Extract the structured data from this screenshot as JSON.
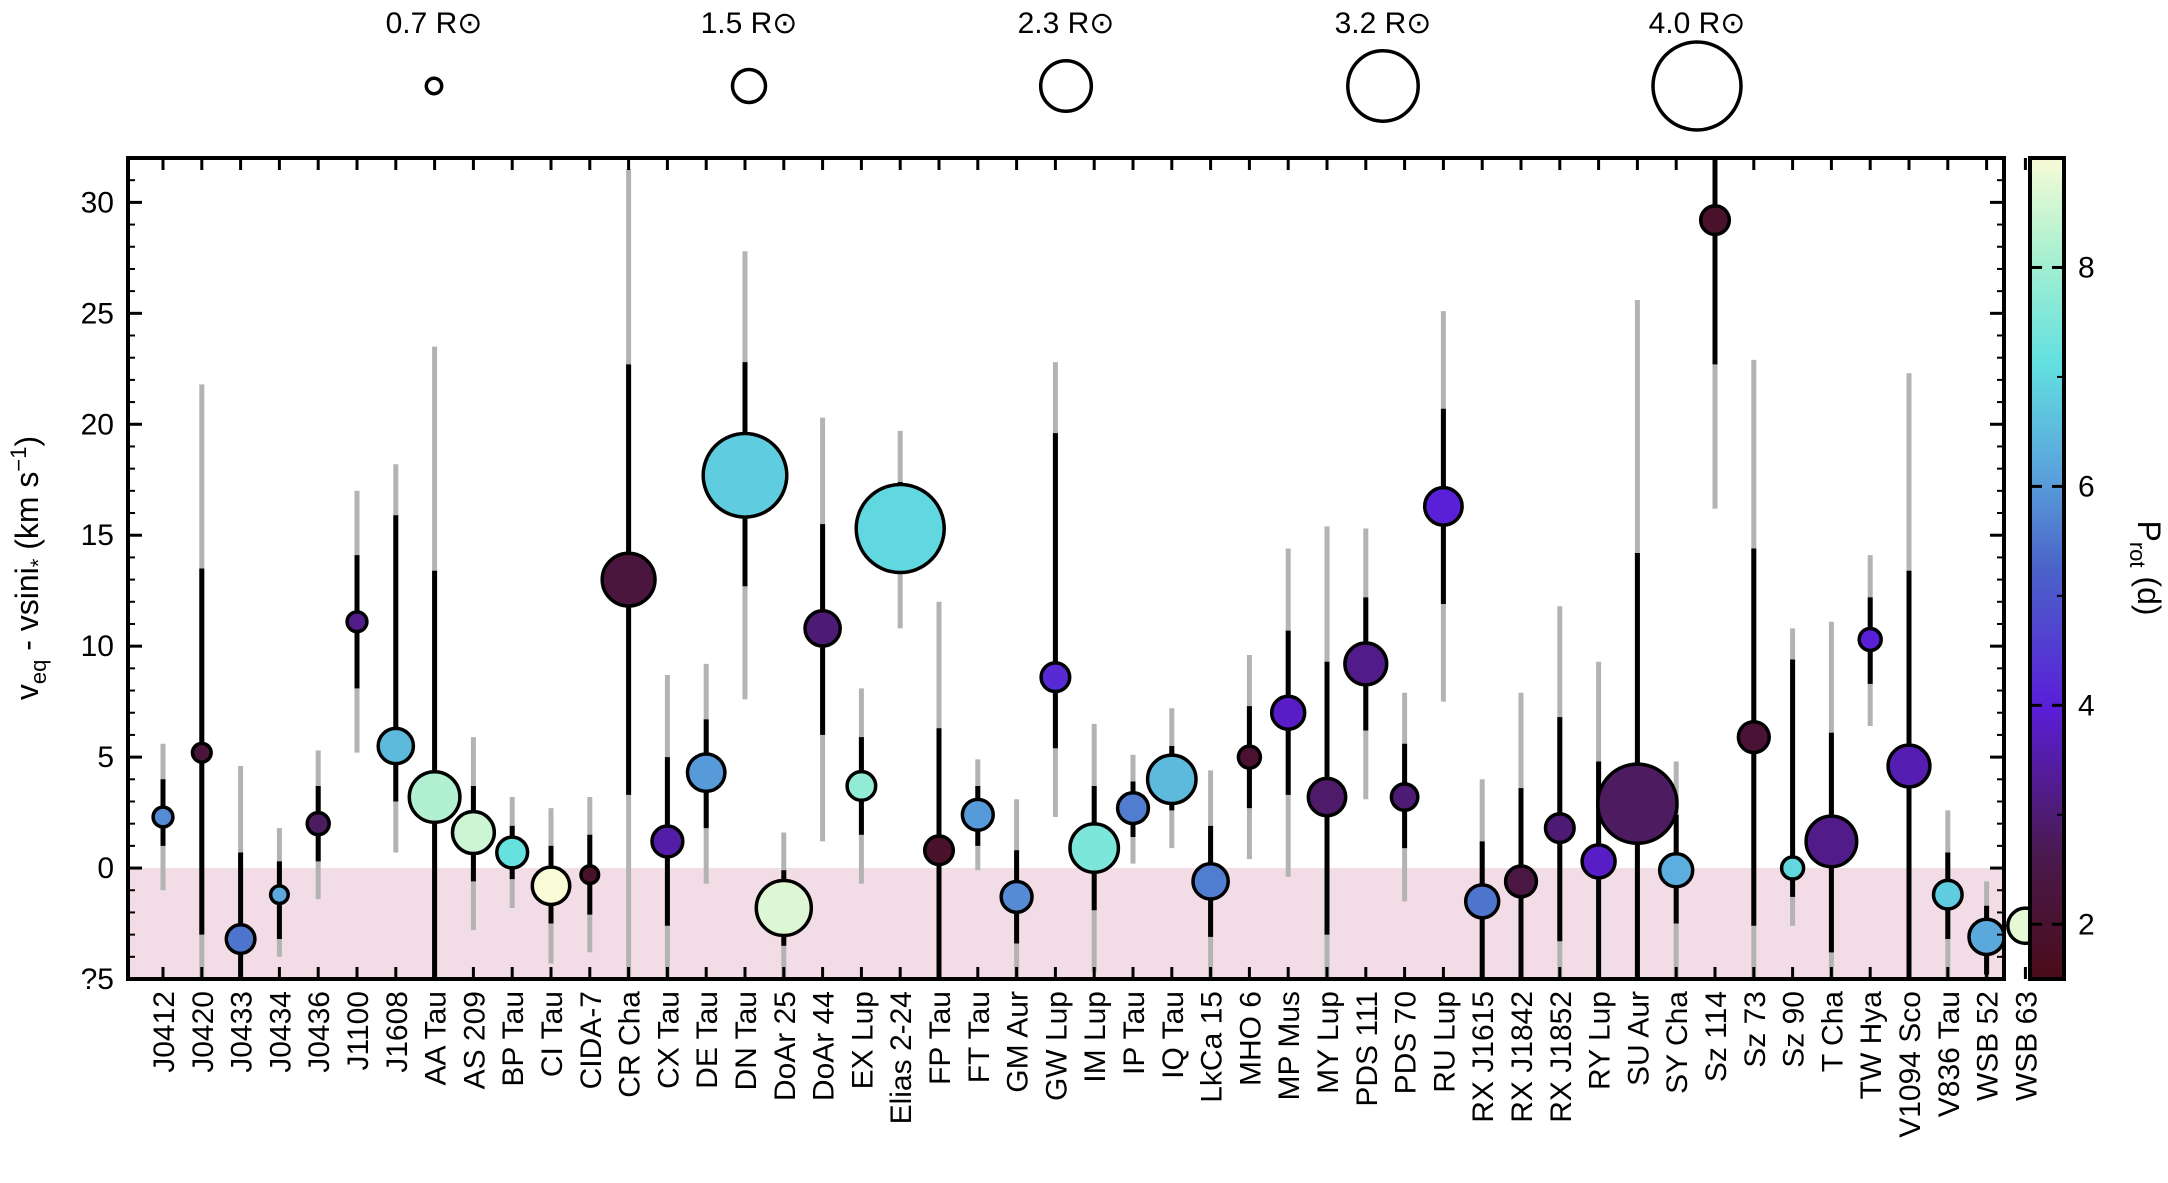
{
  "chart_data": {
    "type": "scatter",
    "ylabel": "v_eq - vsini_* (km s^-1)",
    "ylim": [
      -5,
      32
    ],
    "yticks": [
      -5,
      0,
      5,
      10,
      15,
      20,
      25,
      30
    ],
    "ytick_labels": [
      "?5",
      "0",
      "5",
      "10",
      "15",
      "20",
      "25",
      "30"
    ],
    "shaded_region": {
      "y_from": -5,
      "y_to": 0,
      "color": "#f2dde6"
    },
    "size_legend": [
      {
        "label": "0.7 R⊙",
        "radius_rsun": 0.7
      },
      {
        "label": "1.5 R⊙",
        "radius_rsun": 1.5
      },
      {
        "label": "2.3 R⊙",
        "radius_rsun": 2.3
      },
      {
        "label": "3.2 R⊙",
        "radius_rsun": 3.2
      },
      {
        "label": "4.0 R⊙",
        "radius_rsun": 4.0
      }
    ],
    "colorbar": {
      "label": "P_rot (d)",
      "range": [
        1.5,
        9.0
      ],
      "ticks": [
        2,
        4,
        6,
        8
      ],
      "tick_labels": [
        "2",
        "4",
        "6",
        "8"
      ],
      "colormap": "mako_r-like (dark red → purple → blue → cyan → pale yellow)"
    },
    "stars": [
      {
        "name": "J0412",
        "y": 2.3,
        "e1": [
          1.0,
          4.0
        ],
        "e2": [
          -1.0,
          5.6
        ],
        "r": 0.9,
        "prot": 5.8
      },
      {
        "name": "J0420",
        "y": 5.2,
        "e1": [
          -3.0,
          13.5
        ],
        "e2": [
          -5.0,
          21.8
        ],
        "r": 0.85,
        "prot": 2.2
      },
      {
        "name": "J0433",
        "y": -3.2,
        "e1": [
          -5.0,
          0.7
        ],
        "e2": [
          -5.0,
          4.6
        ],
        "r": 1.3,
        "prot": 5.5
      },
      {
        "name": "J0434",
        "y": -1.2,
        "e1": [
          -3.2,
          0.3
        ],
        "e2": [
          -4.0,
          1.8
        ],
        "r": 0.8,
        "prot": 6.2
      },
      {
        "name": "J0436",
        "y": 2.0,
        "e1": [
          0.3,
          3.7
        ],
        "e2": [
          -1.4,
          5.3
        ],
        "r": 1.0,
        "prot": 2.8
      },
      {
        "name": "J1100",
        "y": 11.1,
        "e1": [
          8.1,
          14.1
        ],
        "e2": [
          5.2,
          17.0
        ],
        "r": 0.9,
        "prot": 3.2
      },
      {
        "name": "J1608",
        "y": 5.5,
        "e1": [
          3.0,
          15.9
        ],
        "e2": [
          0.7,
          18.2
        ],
        "r": 1.6,
        "prot": 6.5
      },
      {
        "name": "AA Tau",
        "y": 3.2,
        "e1": [
          -5.0,
          13.4
        ],
        "e2": [
          -5.0,
          23.5
        ],
        "r": 2.3,
        "prot": 8.2
      },
      {
        "name": "AS 209",
        "y": 1.6,
        "e1": [
          -0.6,
          3.7
        ],
        "e2": [
          -2.8,
          5.9
        ],
        "r": 1.9,
        "prot": 8.5
      },
      {
        "name": "BP Tau",
        "y": 0.7,
        "e1": [
          -0.5,
          1.9
        ],
        "e2": [
          -1.8,
          3.2
        ],
        "r": 1.4,
        "prot": 7.2
      },
      {
        "name": "CI Tau",
        "y": -0.8,
        "e1": [
          -2.5,
          1.0
        ],
        "e2": [
          -4.3,
          2.7
        ],
        "r": 1.7,
        "prot": 9.0
      },
      {
        "name": "CIDA-7",
        "y": -0.3,
        "e1": [
          -2.1,
          1.5
        ],
        "e2": [
          -3.8,
          3.2
        ],
        "r": 0.8,
        "prot": 1.9
      },
      {
        "name": "CR Cha",
        "y": 13.0,
        "e1": [
          3.3,
          22.7
        ],
        "e2": [
          -5.0,
          31.5
        ],
        "r": 2.4,
        "prot": 2.3
      },
      {
        "name": "CX Tau",
        "y": 1.2,
        "e1": [
          -2.6,
          5.0
        ],
        "e2": [
          -5.0,
          8.7
        ],
        "r": 1.4,
        "prot": 3.5
      },
      {
        "name": "DE Tau",
        "y": 4.3,
        "e1": [
          1.8,
          6.7
        ],
        "e2": [
          -0.7,
          9.2
        ],
        "r": 1.7,
        "prot": 6.0
      },
      {
        "name": "DN Tau",
        "y": 17.7,
        "e1": [
          12.7,
          22.8
        ],
        "e2": [
          7.6,
          27.8
        ],
        "r": 3.8,
        "prot": 6.8
      },
      {
        "name": "DoAr 25",
        "y": -1.8,
        "e1": [
          -3.5,
          -0.1
        ],
        "e2": [
          -5.0,
          1.6
        ],
        "r": 2.5,
        "prot": 8.7
      },
      {
        "name": "DoAr 44",
        "y": 10.8,
        "e1": [
          6.0,
          15.5
        ],
        "e2": [
          1.2,
          20.3
        ],
        "r": 1.6,
        "prot": 3.0
      },
      {
        "name": "EX Lup",
        "y": 3.7,
        "e1": [
          1.5,
          5.9
        ],
        "e2": [
          -0.7,
          8.1
        ],
        "r": 1.3,
        "prot": 7.8
      },
      {
        "name": "Elias 2-24",
        "y": 15.3,
        "e1": [
          13.3,
          17.4
        ],
        "e2": [
          10.8,
          19.7
        ],
        "r": 4.0,
        "prot": 7.0
      },
      {
        "name": "FP Tau",
        "y": 0.8,
        "e1": [
          -5.0,
          6.3
        ],
        "e2": [
          -5.0,
          12.0
        ],
        "r": 1.3,
        "prot": 1.9
      },
      {
        "name": "FT Tau",
        "y": 2.4,
        "e1": [
          1.0,
          3.7
        ],
        "e2": [
          -0.1,
          4.9
        ],
        "r": 1.4,
        "prot": 6.0
      },
      {
        "name": "GM Aur",
        "y": -1.3,
        "e1": [
          -3.4,
          0.8
        ],
        "e2": [
          -5.0,
          3.1
        ],
        "r": 1.4,
        "prot": 5.8
      },
      {
        "name": "GW Lup",
        "y": 8.6,
        "e1": [
          5.4,
          19.6
        ],
        "e2": [
          2.3,
          22.8
        ],
        "r": 1.3,
        "prot": 4.2
      },
      {
        "name": "IM Lup",
        "y": 0.9,
        "e1": [
          -1.9,
          3.7
        ],
        "e2": [
          -4.7,
          6.5
        ],
        "r": 2.2,
        "prot": 7.5
      },
      {
        "name": "IP Tau",
        "y": 2.7,
        "e1": [
          1.4,
          3.9
        ],
        "e2": [
          0.2,
          5.1
        ],
        "r": 1.4,
        "prot": 5.6
      },
      {
        "name": "IQ Tau",
        "y": 4.0,
        "e1": [
          2.6,
          5.5
        ],
        "e2": [
          0.9,
          7.2
        ],
        "r": 2.2,
        "prot": 6.5
      },
      {
        "name": "LkCa 15",
        "y": -0.6,
        "e1": [
          -3.1,
          1.9
        ],
        "e2": [
          -5.0,
          4.4
        ],
        "r": 1.6,
        "prot": 5.6
      },
      {
        "name": "MHO 6",
        "y": 5.0,
        "e1": [
          2.7,
          7.3
        ],
        "e2": [
          0.4,
          9.6
        ],
        "r": 1.0,
        "prot": 2.0
      },
      {
        "name": "MP Mus",
        "y": 7.0,
        "e1": [
          3.3,
          10.7
        ],
        "e2": [
          -0.4,
          14.4
        ],
        "r": 1.5,
        "prot": 3.8
      },
      {
        "name": "MY Lup",
        "y": 3.2,
        "e1": [
          -3.0,
          9.3
        ],
        "e2": [
          -5.0,
          15.4
        ],
        "r": 1.7,
        "prot": 2.9
      },
      {
        "name": "PDS 111",
        "y": 9.2,
        "e1": [
          6.2,
          12.2
        ],
        "e2": [
          3.1,
          15.3
        ],
        "r": 1.9,
        "prot": 3.2
      },
      {
        "name": "PDS 70",
        "y": 3.2,
        "e1": [
          0.9,
          5.6
        ],
        "e2": [
          -1.5,
          7.9
        ],
        "r": 1.2,
        "prot": 3.0
      },
      {
        "name": "RU Lup",
        "y": 16.3,
        "e1": [
          11.9,
          20.7
        ],
        "e2": [
          7.5,
          25.1
        ],
        "r": 1.7,
        "prot": 4.0
      },
      {
        "name": "RX J1615",
        "y": -1.5,
        "e1": [
          -5.0,
          1.2
        ],
        "e2": [
          -5.0,
          4.0
        ],
        "r": 1.5,
        "prot": 5.5
      },
      {
        "name": "RX J1842",
        "y": -0.6,
        "e1": [
          -5.0,
          3.6
        ],
        "e2": [
          -5.0,
          7.9
        ],
        "r": 1.4,
        "prot": 2.4
      },
      {
        "name": "RX J1852",
        "y": 1.8,
        "e1": [
          -3.3,
          6.8
        ],
        "e2": [
          -5.0,
          11.8
        ],
        "r": 1.3,
        "prot": 3.0
      },
      {
        "name": "RY Lup",
        "y": 0.3,
        "e1": [
          -5.0,
          4.8
        ],
        "e2": [
          -5.0,
          9.3
        ],
        "r": 1.5,
        "prot": 3.8
      },
      {
        "name": "SU Aur",
        "y": 2.9,
        "e1": [
          -5.0,
          14.2
        ],
        "e2": [
          -5.0,
          25.6
        ],
        "r": 3.6,
        "prot": 2.8
      },
      {
        "name": "SY Cha",
        "y": -0.1,
        "e1": [
          -2.5,
          2.4
        ],
        "e2": [
          -4.9,
          4.8
        ],
        "r": 1.5,
        "prot": 6.3
      },
      {
        "name": "Sz 114",
        "y": 29.2,
        "e1": [
          22.7,
          32.0
        ],
        "e2": [
          16.2,
          32.0
        ],
        "r": 1.3,
        "prot": 1.9
      },
      {
        "name": "Sz 73",
        "y": 5.9,
        "e1": [
          -2.6,
          14.4
        ],
        "e2": [
          -5.0,
          22.9
        ],
        "r": 1.4,
        "prot": 2.1
      },
      {
        "name": "Sz 90",
        "y": 0.0,
        "e1": [
          -1.3,
          9.4
        ],
        "e2": [
          -2.6,
          10.8
        ],
        "r": 1.0,
        "prot": 7.0
      },
      {
        "name": "T Cha",
        "y": 1.2,
        "e1": [
          -3.8,
          6.1
        ],
        "e2": [
          -5.0,
          11.1
        ],
        "r": 2.3,
        "prot": 3.2
      },
      {
        "name": "TW Hya",
        "y": 10.3,
        "e1": [
          8.3,
          12.2
        ],
        "e2": [
          6.4,
          14.1
        ],
        "r": 1.0,
        "prot": 4.0
      },
      {
        "name": "V1094 Sco",
        "y": 4.6,
        "e1": [
          -5.0,
          13.4
        ],
        "e2": [
          -5.0,
          22.3
        ],
        "r": 1.9,
        "prot": 3.6
      },
      {
        "name": "V836 Tau",
        "y": -1.2,
        "e1": [
          -3.2,
          0.7
        ],
        "e2": [
          -5.0,
          2.6
        ],
        "r": 1.3,
        "prot": 6.8
      },
      {
        "name": "WSB 52",
        "y": -3.1,
        "e1": [
          -4.8,
          -1.7
        ],
        "e2": [
          -5.0,
          -0.6
        ],
        "r": 1.6,
        "prot": 6.2
      },
      {
        "name": "WSB 63",
        "y": -2.6,
        "e1": [
          -4.1,
          -1.1
        ],
        "e2": [
          -5.0,
          1.9
        ],
        "r": 1.6,
        "prot": 8.8
      }
    ]
  }
}
